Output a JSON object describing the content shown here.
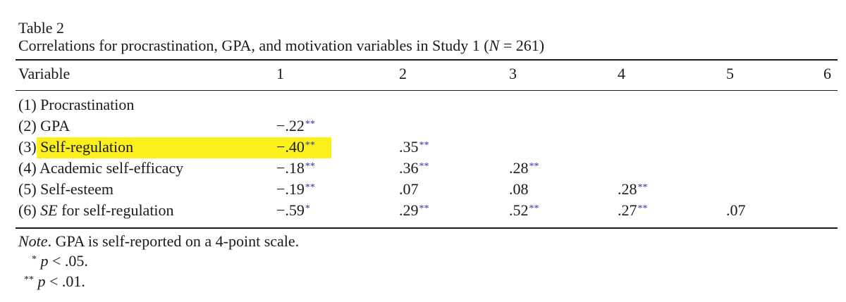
{
  "table": {
    "label": "Table 2",
    "caption_before": "Correlations for procrastination, GPA, and motivation variables in Study 1 (",
    "caption_n": "N",
    "caption_after": " = 261)",
    "headers": [
      "Variable",
      "1",
      "2",
      "3",
      "4",
      "5",
      "6"
    ],
    "rows": [
      {
        "label_prefix": "(1) ",
        "label_em": "",
        "label": "Procrastination",
        "cells": []
      },
      {
        "label_prefix": "(2) ",
        "label_em": "",
        "label": "GPA",
        "cells": [
          {
            "v": "−.22",
            "s": "**"
          }
        ]
      },
      {
        "label_prefix": "(3) ",
        "label_em": "",
        "label": "Self-regulation",
        "cells": [
          {
            "v": "−.40",
            "s": "**"
          },
          {
            "v": ".35",
            "s": "**"
          }
        ]
      },
      {
        "label_prefix": "(4) ",
        "label_em": "",
        "label": "Academic self-efficacy",
        "cells": [
          {
            "v": "−.18",
            "s": "**"
          },
          {
            "v": ".36",
            "s": "**"
          },
          {
            "v": ".28",
            "s": "**"
          }
        ]
      },
      {
        "label_prefix": "(5) ",
        "label_em": "",
        "label": "Self-esteem",
        "cells": [
          {
            "v": "−.19",
            "s": "**"
          },
          {
            "v": ".07",
            "s": ""
          },
          {
            "v": ".08",
            "s": ""
          },
          {
            "v": ".28",
            "s": "**"
          }
        ]
      },
      {
        "label_prefix": "(6) ",
        "label_em": "SE",
        "label": " for self-regulation",
        "cells": [
          {
            "v": "−.59",
            "s": "*"
          },
          {
            "v": ".29",
            "s": "**"
          },
          {
            "v": ".52",
            "s": "**"
          },
          {
            "v": ".27",
            "s": "**"
          },
          {
            "v": ".07",
            "s": ""
          }
        ]
      }
    ],
    "highlight_row": 2,
    "highlight_color": "#fcf11c",
    "asterisk_color": "#2f2fa8"
  },
  "notes": {
    "note_label": "Note",
    "note_text": ". GPA is self-reported on a 4-point scale.",
    "footnotes": [
      {
        "mark": "*",
        "p": "p",
        "text": " < .05."
      },
      {
        "mark": "**",
        "p": "p",
        "text": " < .01."
      }
    ]
  }
}
